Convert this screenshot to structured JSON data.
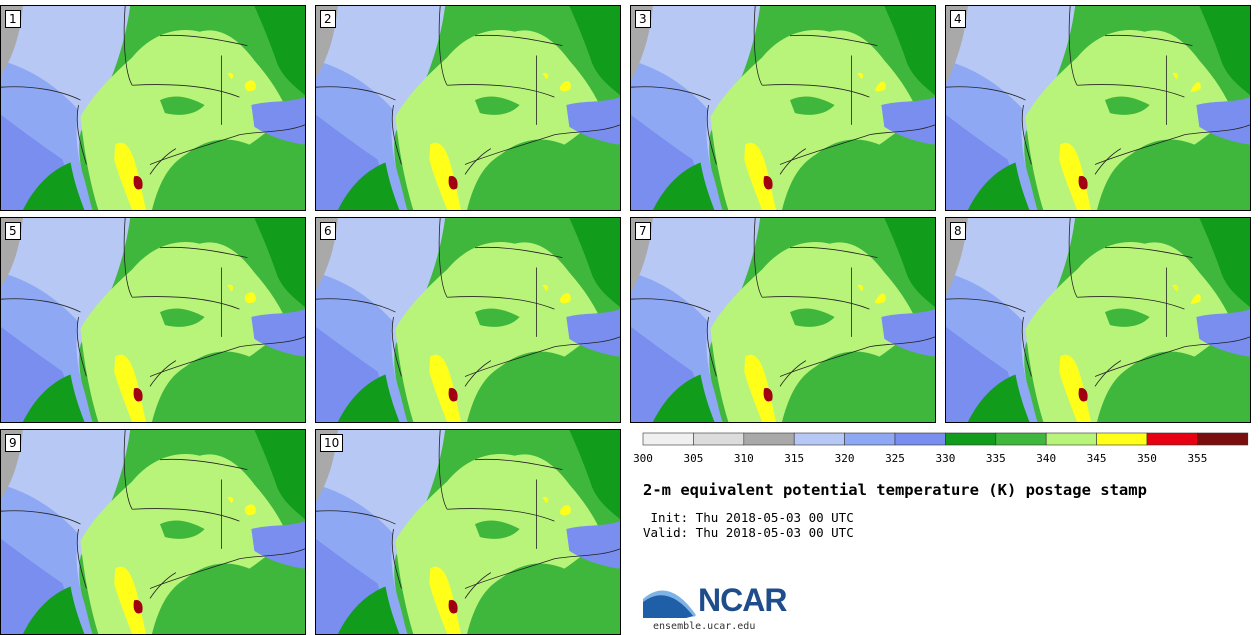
{
  "panels": [
    "1",
    "2",
    "3",
    "4",
    "5",
    "6",
    "7",
    "8",
    "9",
    "10"
  ],
  "colorbar": {
    "colors": [
      "#f0f0f0",
      "#dcdcdc",
      "#a9a9a9",
      "#b7c8f4",
      "#8ea8f4",
      "#7a8ef0",
      "#119c1b",
      "#3fb73c",
      "#b9f47a",
      "#ffff1a",
      "#e60012",
      "#7a0d0d"
    ],
    "ticks": [
      "300",
      "305",
      "310",
      "315",
      "320",
      "325",
      "330",
      "335",
      "340",
      "345",
      "350",
      "355"
    ]
  },
  "title": "2-m equivalent potential temperature (K) postage stamp",
  "init": " Init: Thu 2018-05-03 00 UTC",
  "valid": "Valid: Thu 2018-05-03 00 UTC",
  "logo": {
    "text": "NCAR",
    "url": "ensemble.ucar.edu",
    "colors": {
      "blue": "#1f5fa8",
      "light": "#7fb2e5"
    }
  },
  "map_colors": {
    "gray": "#a9a9a9",
    "light_blue": "#b7c8f4",
    "mid_blue": "#8ea8f4",
    "blue": "#7a8ef0",
    "dark_green": "#119c1b",
    "green": "#3fb73c",
    "light_green": "#b9f47a",
    "yellow": "#ffff1a",
    "red": "#e60012",
    "dark_red": "#a00010"
  }
}
